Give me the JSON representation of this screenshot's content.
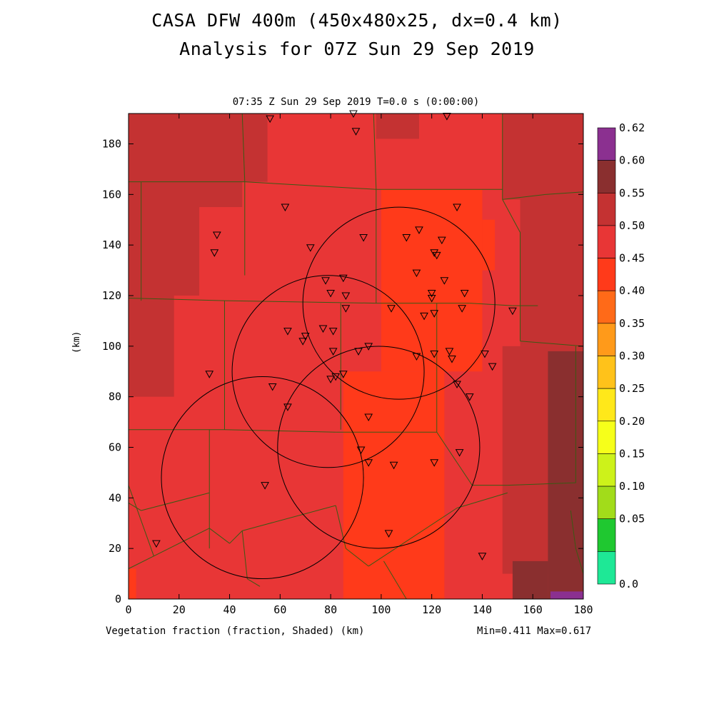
{
  "header": {
    "title_line1": "CASA DFW 400m (450x480x25, dx=0.4 km)",
    "title_line2": "Analysis for 07Z Sun 29 Sep 2019",
    "subtitle": "07:35 Z Sun 29 Sep 2019    T=0.0 s (0:00:00)"
  },
  "footer": {
    "xlabel": "Vegetation fraction (fraction, Shaded)  (km)",
    "minmax": "Min=0.411 Max=0.617"
  },
  "chart_data": {
    "type": "heatmap",
    "variable": "Vegetation fraction",
    "units": "fraction",
    "xlabel": "(km)",
    "ylabel": "(km)",
    "xlim": [
      0,
      180
    ],
    "ylim": [
      0,
      192
    ],
    "x_ticks": [
      0,
      20,
      40,
      60,
      80,
      100,
      120,
      140,
      160,
      180
    ],
    "y_ticks": [
      0,
      20,
      40,
      60,
      80,
      100,
      120,
      140,
      160,
      180
    ],
    "colorbar": {
      "labels": [
        "0.62",
        "0.60",
        "0.55",
        "0.50",
        "0.45",
        "0.40",
        "0.35",
        "0.30",
        "0.25",
        "0.20",
        "0.15",
        "0.10",
        "0.05",
        "0.0"
      ],
      "colors": [
        "#8b3090",
        "#8a2f2f",
        "#c43232",
        "#e83636",
        "#ff3a1a",
        "#ff6a18",
        "#ff9a1a",
        "#ffc21a",
        "#ffe81a",
        "#f6ff1a",
        "#cdf21a",
        "#a2dc1a",
        "#1fc830",
        "#1ee896"
      ]
    },
    "min": 0.411,
    "max": 0.617,
    "regions": [
      {
        "x0": 0,
        "x1": 180,
        "y0": 0,
        "y1": 192,
        "color": "#e83636"
      },
      {
        "x0": 0,
        "x1": 45,
        "y0": 155,
        "y1": 192,
        "color": "#c43232"
      },
      {
        "x0": 45,
        "x1": 55,
        "y0": 165,
        "y1": 192,
        "color": "#c43232"
      },
      {
        "x0": 98,
        "x1": 115,
        "y0": 182,
        "y1": 192,
        "color": "#c43232"
      },
      {
        "x0": 148,
        "x1": 180,
        "y0": 158,
        "y1": 192,
        "color": "#c43232"
      },
      {
        "x0": 0,
        "x1": 28,
        "y0": 120,
        "y1": 165,
        "color": "#c43232"
      },
      {
        "x0": 0,
        "x1": 18,
        "y0": 80,
        "y1": 120,
        "color": "#c43232"
      },
      {
        "x0": 155,
        "x1": 180,
        "y0": 100,
        "y1": 170,
        "color": "#c43232"
      },
      {
        "x0": 148,
        "x1": 180,
        "y0": 10,
        "y1": 100,
        "color": "#c43232"
      },
      {
        "x0": 166,
        "x1": 180,
        "y0": 0,
        "y1": 98,
        "color": "#8a2f2f"
      },
      {
        "x0": 152,
        "x1": 166,
        "y0": 0,
        "y1": 15,
        "color": "#8a2f2f"
      },
      {
        "x0": 167,
        "x1": 180,
        "y0": 0,
        "y1": 3,
        "color": "#8b3090"
      },
      {
        "x0": 0,
        "x1": 3,
        "y0": 0,
        "y1": 12,
        "color": "#ff3a1a"
      },
      {
        "x0": 85,
        "x1": 125,
        "y0": 0,
        "y1": 90,
        "color": "#ff3a1a"
      },
      {
        "x0": 100,
        "x1": 140,
        "y0": 90,
        "y1": 162,
        "color": "#ff3a1a"
      },
      {
        "x0": 140,
        "x1": 145,
        "y0": 130,
        "y1": 150,
        "color": "#ff3a1a"
      }
    ],
    "radar_rings": [
      {
        "cx": 53,
        "cy": 48,
        "r": 40
      },
      {
        "cx": 79,
        "cy": 90,
        "r": 38
      },
      {
        "cx": 107,
        "cy": 117,
        "r": 38
      },
      {
        "cx": 99,
        "cy": 60,
        "r": 40
      }
    ],
    "boundaries": [
      [
        [
          0,
          165
        ],
        [
          5,
          165
        ]
      ],
      [
        [
          5,
          165
        ],
        [
          5,
          118
        ]
      ],
      [
        [
          45,
          192
        ],
        [
          46,
          165
        ]
      ],
      [
        [
          5,
          165
        ],
        [
          46,
          165
        ]
      ],
      [
        [
          46,
          165
        ],
        [
          46,
          128
        ]
      ],
      [
        [
          46,
          165
        ],
        [
          98,
          162
        ]
      ],
      [
        [
          97,
          192
        ],
        [
          98,
          162
        ]
      ],
      [
        [
          98,
          162
        ],
        [
          148,
          162
        ]
      ],
      [
        [
          148,
          192
        ],
        [
          148,
          158
        ]
      ],
      [
        [
          148,
          158
        ],
        [
          165,
          160
        ]
      ],
      [
        [
          165,
          160
        ],
        [
          180,
          161
        ]
      ],
      [
        [
          0,
          119
        ],
        [
          38,
          118
        ]
      ],
      [
        [
          38,
          118
        ],
        [
          98,
          117
        ]
      ],
      [
        [
          98,
          117
        ],
        [
          135,
          117
        ]
      ],
      [
        [
          135,
          117
        ],
        [
          152,
          116
        ]
      ],
      [
        [
          152,
          116
        ],
        [
          162,
          116
        ]
      ],
      [
        [
          98,
          162
        ],
        [
          98,
          117
        ]
      ],
      [
        [
          148,
          158
        ],
        [
          155,
          145
        ]
      ],
      [
        [
          155,
          145
        ],
        [
          155,
          116
        ]
      ],
      [
        [
          155,
          116
        ],
        [
          155,
          102
        ]
      ],
      [
        [
          155,
          102
        ],
        [
          180,
          100
        ]
      ],
      [
        [
          38,
          118
        ],
        [
          38,
          67
        ]
      ],
      [
        [
          0,
          67
        ],
        [
          38,
          67
        ]
      ],
      [
        [
          38,
          67
        ],
        [
          82,
          66
        ]
      ],
      [
        [
          82,
          66
        ],
        [
          122,
          66
        ]
      ],
      [
        [
          84,
          117
        ],
        [
          84,
          67
        ]
      ],
      [
        [
          122,
          117
        ],
        [
          122,
          66
        ]
      ],
      [
        [
          122,
          66
        ],
        [
          130,
          54
        ]
      ],
      [
        [
          130,
          54
        ],
        [
          136,
          45
        ]
      ],
      [
        [
          136,
          45
        ],
        [
          150,
          45
        ]
      ],
      [
        [
          150,
          45
        ],
        [
          177,
          46
        ]
      ],
      [
        [
          177,
          46
        ],
        [
          177,
          100
        ]
      ],
      [
        [
          32,
          67
        ],
        [
          32,
          20
        ]
      ],
      [
        [
          32,
          42
        ],
        [
          5,
          35
        ]
      ],
      [
        [
          5,
          35
        ],
        [
          0,
          38
        ]
      ],
      [
        [
          0,
          45
        ],
        [
          10,
          17
        ]
      ],
      [
        [
          10,
          17
        ],
        [
          32,
          28
        ]
      ],
      [
        [
          32,
          28
        ],
        [
          40,
          22
        ]
      ],
      [
        [
          40,
          22
        ],
        [
          45,
          27
        ]
      ],
      [
        [
          45,
          27
        ],
        [
          82,
          37
        ]
      ],
      [
        [
          82,
          37
        ],
        [
          86,
          20
        ]
      ],
      [
        [
          86,
          20
        ],
        [
          95,
          13
        ]
      ],
      [
        [
          95,
          13
        ],
        [
          130,
          36
        ]
      ],
      [
        [
          130,
          36
        ],
        [
          150,
          42
        ]
      ],
      [
        [
          0,
          12
        ],
        [
          10,
          17
        ]
      ],
      [
        [
          45,
          27
        ],
        [
          47,
          8
        ]
      ],
      [
        [
          47,
          8
        ],
        [
          52,
          5
        ]
      ],
      [
        [
          101,
          15
        ],
        [
          110,
          0
        ]
      ],
      [
        [
          175,
          35
        ],
        [
          177,
          20
        ]
      ],
      [
        [
          177,
          20
        ],
        [
          180,
          10
        ]
      ]
    ],
    "stations": [
      [
        56,
        190
      ],
      [
        89,
        192
      ],
      [
        90,
        185
      ],
      [
        126,
        191
      ],
      [
        62,
        155
      ],
      [
        35,
        144
      ],
      [
        34,
        137
      ],
      [
        72,
        139
      ],
      [
        93,
        143
      ],
      [
        110,
        143
      ],
      [
        115,
        146
      ],
      [
        124,
        142
      ],
      [
        130,
        155
      ],
      [
        121,
        137
      ],
      [
        122,
        136
      ],
      [
        114,
        129
      ],
      [
        125,
        126
      ],
      [
        78,
        126
      ],
      [
        85,
        127
      ],
      [
        80,
        121
      ],
      [
        86,
        120
      ],
      [
        86,
        115
      ],
      [
        120,
        121
      ],
      [
        120,
        119
      ],
      [
        133,
        121
      ],
      [
        132,
        115
      ],
      [
        104,
        115
      ],
      [
        117,
        112
      ],
      [
        121,
        113
      ],
      [
        152,
        114
      ],
      [
        63,
        106
      ],
      [
        70,
        104
      ],
      [
        69,
        102
      ],
      [
        77,
        107
      ],
      [
        81,
        106
      ],
      [
        81,
        98
      ],
      [
        91,
        98
      ],
      [
        95,
        100
      ],
      [
        114,
        96
      ],
      [
        121,
        97
      ],
      [
        127,
        98
      ],
      [
        128,
        95
      ],
      [
        141,
        97
      ],
      [
        144,
        92
      ],
      [
        32,
        89
      ],
      [
        85,
        89
      ],
      [
        82,
        88
      ],
      [
        80,
        87
      ],
      [
        57,
        84
      ],
      [
        130,
        85
      ],
      [
        135,
        80
      ],
      [
        63,
        76
      ],
      [
        95,
        72
      ],
      [
        92,
        59
      ],
      [
        131,
        58
      ],
      [
        95,
        54
      ],
      [
        105,
        53
      ],
      [
        121,
        54
      ],
      [
        54,
        45
      ],
      [
        103,
        26
      ],
      [
        11,
        22
      ],
      [
        140,
        17
      ]
    ]
  }
}
